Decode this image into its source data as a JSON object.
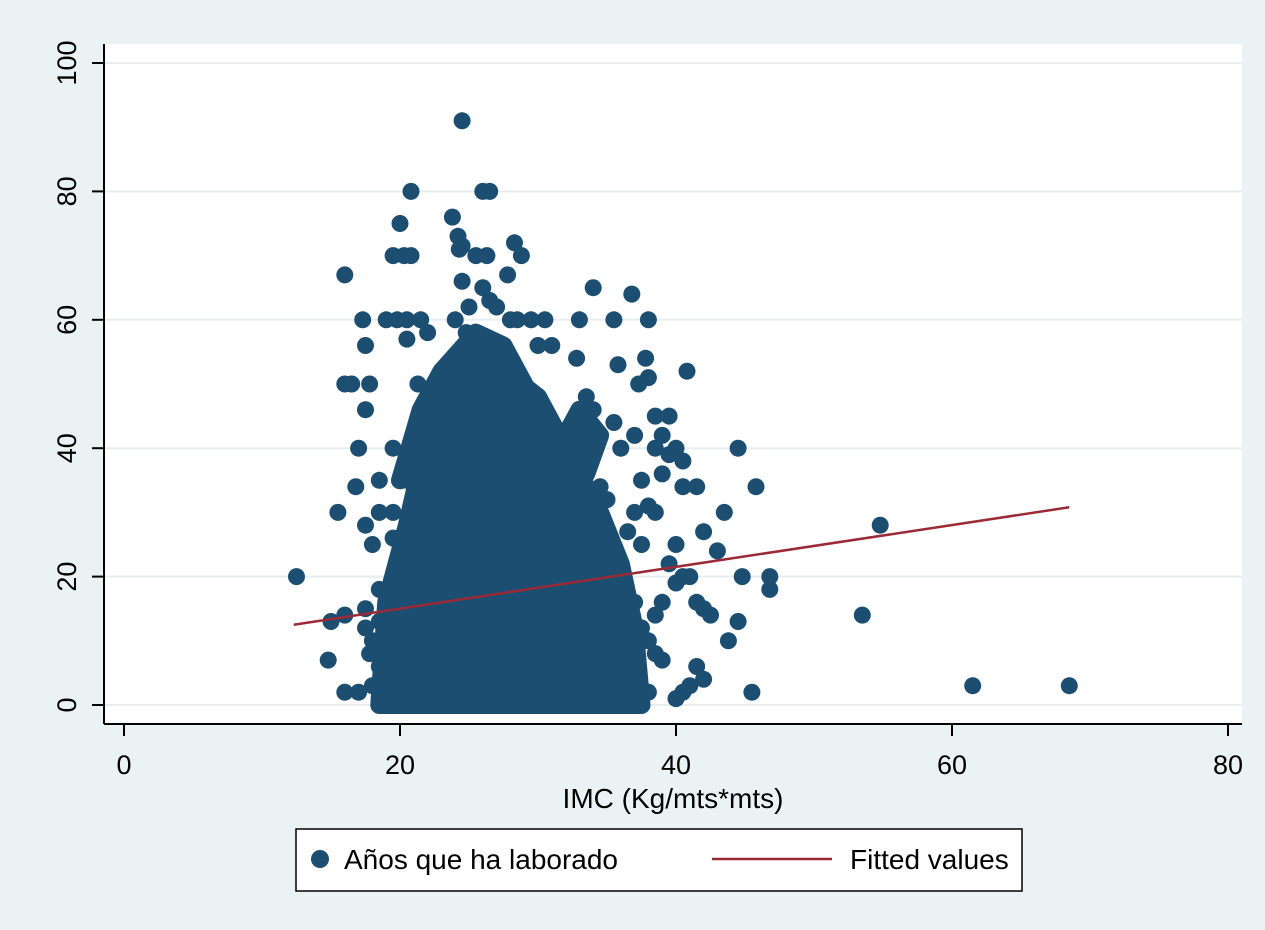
{
  "chart_data": {
    "type": "scatter",
    "title": "",
    "xlabel": "IMC (Kg/mts*mts)",
    "ylabel": "",
    "xlim": [
      0,
      80
    ],
    "ylim": [
      0,
      100
    ],
    "xticks": [
      "0",
      "20",
      "40",
      "60",
      "80"
    ],
    "yticks": [
      "0",
      "20",
      "40",
      "60",
      "80",
      "100"
    ],
    "grid": "horizontal",
    "legend_position": "bottom",
    "colors": {
      "points": "#1c4e72",
      "fit": "#9b2a36",
      "plot_bg": "#ffffff",
      "outer_bg": "#eaf2f3",
      "grid": "#e8eef0"
    },
    "series": [
      {
        "name": "Años que ha laborado",
        "kind": "scatter",
        "points": [
          [
            24.5,
            91
          ],
          [
            26,
            80
          ],
          [
            26.5,
            80
          ],
          [
            20.8,
            80
          ],
          [
            23.8,
            76
          ],
          [
            20,
            75
          ],
          [
            24.2,
            73
          ],
          [
            28.3,
            72
          ],
          [
            24.5,
            71.5
          ],
          [
            24.3,
            71
          ],
          [
            19.5,
            70
          ],
          [
            20.3,
            70
          ],
          [
            20.8,
            70
          ],
          [
            25.5,
            70
          ],
          [
            26.3,
            70
          ],
          [
            28.8,
            70
          ],
          [
            16,
            67
          ],
          [
            27.8,
            67
          ],
          [
            24.5,
            66
          ],
          [
            34,
            65
          ],
          [
            26,
            65
          ],
          [
            26.5,
            63
          ],
          [
            36.8,
            64
          ],
          [
            25,
            62
          ],
          [
            27,
            62
          ],
          [
            17.3,
            60
          ],
          [
            19,
            60
          ],
          [
            19.8,
            60
          ],
          [
            20.5,
            60
          ],
          [
            21.5,
            60
          ],
          [
            24,
            60
          ],
          [
            28,
            60
          ],
          [
            28.5,
            60
          ],
          [
            29.5,
            60
          ],
          [
            30.5,
            60
          ],
          [
            33,
            60
          ],
          [
            35.5,
            60
          ],
          [
            38,
            60
          ],
          [
            22,
            58
          ],
          [
            24.8,
            58
          ],
          [
            20.5,
            57
          ],
          [
            17.5,
            56
          ],
          [
            26.5,
            56
          ],
          [
            30,
            56
          ],
          [
            31,
            56
          ],
          [
            35.8,
            53
          ],
          [
            37.8,
            54
          ],
          [
            32.8,
            54
          ],
          [
            40.8,
            52
          ],
          [
            16,
            50
          ],
          [
            16.5,
            50
          ],
          [
            17.8,
            50
          ],
          [
            21.3,
            50
          ],
          [
            23,
            50
          ],
          [
            27,
            50
          ],
          [
            37.3,
            50
          ],
          [
            38,
            51
          ],
          [
            22.5,
            48
          ],
          [
            29.5,
            48
          ],
          [
            33.5,
            48
          ],
          [
            17.5,
            46
          ],
          [
            34,
            46
          ],
          [
            38.5,
            45
          ],
          [
            39.5,
            45
          ],
          [
            22,
            44
          ],
          [
            35.5,
            44
          ],
          [
            25.5,
            43
          ],
          [
            30,
            43
          ],
          [
            21,
            42
          ],
          [
            28.5,
            42
          ],
          [
            39,
            42
          ],
          [
            37,
            42
          ],
          [
            17,
            40
          ],
          [
            19.5,
            40
          ],
          [
            21.5,
            40
          ],
          [
            31,
            40
          ],
          [
            36,
            40
          ],
          [
            38.5,
            40
          ],
          [
            40,
            40
          ],
          [
            44.5,
            40
          ],
          [
            24,
            38
          ],
          [
            30.5,
            38
          ],
          [
            40.5,
            38
          ],
          [
            39.5,
            39
          ],
          [
            26.5,
            36
          ],
          [
            33,
            36
          ],
          [
            18.5,
            35
          ],
          [
            20.5,
            35
          ],
          [
            29,
            35
          ],
          [
            37.5,
            35
          ],
          [
            39,
            36
          ],
          [
            34.5,
            34
          ],
          [
            40.5,
            34
          ],
          [
            41.5,
            34
          ],
          [
            45.8,
            34
          ],
          [
            16.8,
            34
          ],
          [
            23,
            33
          ],
          [
            28.5,
            32
          ],
          [
            35,
            32
          ],
          [
            38,
            31
          ],
          [
            18.5,
            30
          ],
          [
            19.5,
            30
          ],
          [
            22,
            30
          ],
          [
            25.5,
            30
          ],
          [
            30.5,
            30
          ],
          [
            32.5,
            30
          ],
          [
            37,
            30
          ],
          [
            38.5,
            30
          ],
          [
            43.5,
            30
          ],
          [
            15.5,
            30
          ],
          [
            17.5,
            28
          ],
          [
            26.5,
            28
          ],
          [
            32.5,
            28
          ],
          [
            36.5,
            27
          ],
          [
            42,
            27
          ],
          [
            19.5,
            26
          ],
          [
            24.5,
            25
          ],
          [
            29,
            25
          ],
          [
            34,
            25
          ],
          [
            37.5,
            25
          ],
          [
            40,
            25
          ],
          [
            18,
            25
          ],
          [
            21,
            23
          ],
          [
            23.5,
            23
          ],
          [
            27.5,
            23
          ],
          [
            31.5,
            23
          ],
          [
            35.5,
            22
          ],
          [
            39.5,
            22
          ],
          [
            43,
            24
          ],
          [
            20,
            21
          ],
          [
            25,
            20
          ],
          [
            28,
            20
          ],
          [
            33.5,
            20
          ],
          [
            40.5,
            20
          ],
          [
            41,
            20
          ],
          [
            44.8,
            20
          ],
          [
            46.8,
            20
          ],
          [
            12.5,
            20
          ],
          [
            18.5,
            18
          ],
          [
            22,
            18
          ],
          [
            26,
            18
          ],
          [
            30,
            18
          ],
          [
            36,
            18
          ],
          [
            40,
            19
          ],
          [
            46.8,
            18
          ],
          [
            19.5,
            16
          ],
          [
            23.5,
            16
          ],
          [
            27.5,
            16
          ],
          [
            33,
            16
          ],
          [
            37,
            16
          ],
          [
            39,
            16
          ],
          [
            41.5,
            16
          ],
          [
            17.5,
            15
          ],
          [
            21.5,
            15
          ],
          [
            25.5,
            15
          ],
          [
            29.5,
            15
          ],
          [
            35,
            15
          ],
          [
            42,
            15
          ],
          [
            16,
            14
          ],
          [
            20.5,
            14
          ],
          [
            24,
            14
          ],
          [
            28.5,
            14
          ],
          [
            31.5,
            14
          ],
          [
            38.5,
            14
          ],
          [
            42.5,
            14
          ],
          [
            53.5,
            14
          ],
          [
            15,
            13
          ],
          [
            18.5,
            13
          ],
          [
            22.5,
            13
          ],
          [
            26.5,
            13
          ],
          [
            30.5,
            13
          ],
          [
            34.5,
            13
          ],
          [
            44.5,
            13
          ],
          [
            17.5,
            12
          ],
          [
            21,
            12
          ],
          [
            25,
            12
          ],
          [
            29,
            12
          ],
          [
            33,
            12
          ],
          [
            37.5,
            12
          ],
          [
            19.5,
            11
          ],
          [
            23.5,
            11
          ],
          [
            27.5,
            11
          ],
          [
            31.5,
            11
          ],
          [
            35.5,
            11
          ],
          [
            18,
            10
          ],
          [
            22,
            10
          ],
          [
            26,
            10
          ],
          [
            30,
            10
          ],
          [
            34,
            10
          ],
          [
            38,
            10
          ],
          [
            43.8,
            10
          ],
          [
            20.5,
            9
          ],
          [
            24.5,
            9
          ],
          [
            28.5,
            9
          ],
          [
            32.5,
            9
          ],
          [
            36.5,
            9
          ],
          [
            17.8,
            8
          ],
          [
            21.5,
            8
          ],
          [
            25.5,
            8
          ],
          [
            29.5,
            8
          ],
          [
            33.5,
            8
          ],
          [
            38.5,
            8
          ],
          [
            14.8,
            7
          ],
          [
            19,
            7
          ],
          [
            23,
            7
          ],
          [
            27,
            7
          ],
          [
            31,
            7
          ],
          [
            35,
            7
          ],
          [
            39,
            7
          ],
          [
            18.5,
            6
          ],
          [
            22.5,
            6
          ],
          [
            26.5,
            6
          ],
          [
            30.5,
            6
          ],
          [
            34.5,
            6
          ],
          [
            41.5,
            6
          ],
          [
            20,
            5
          ],
          [
            24,
            5
          ],
          [
            28,
            5
          ],
          [
            32,
            5
          ],
          [
            36,
            5
          ],
          [
            19,
            4
          ],
          [
            23,
            4
          ],
          [
            27,
            4
          ],
          [
            31,
            4
          ],
          [
            35,
            4
          ],
          [
            42,
            4
          ],
          [
            18,
            3
          ],
          [
            21.5,
            3
          ],
          [
            25.5,
            3
          ],
          [
            29.5,
            3
          ],
          [
            33.5,
            3
          ],
          [
            37,
            3
          ],
          [
            41,
            3
          ],
          [
            61.5,
            3
          ],
          [
            68.5,
            3
          ],
          [
            16,
            2
          ],
          [
            17,
            2
          ],
          [
            19.5,
            2
          ],
          [
            23.5,
            2
          ],
          [
            27.5,
            2
          ],
          [
            31.5,
            2
          ],
          [
            35.5,
            2
          ],
          [
            38,
            2
          ],
          [
            40.5,
            2
          ],
          [
            45.5,
            2
          ],
          [
            18.5,
            1
          ],
          [
            22,
            1
          ],
          [
            26,
            1
          ],
          [
            30,
            1
          ],
          [
            34,
            1
          ],
          [
            40,
            1
          ],
          [
            20,
            0
          ],
          [
            21,
            0
          ],
          [
            22.5,
            0
          ],
          [
            24,
            0
          ],
          [
            25.5,
            0
          ],
          [
            27,
            0
          ],
          [
            28.5,
            0
          ],
          [
            30,
            0
          ],
          [
            31.5,
            0
          ],
          [
            33,
            0
          ],
          [
            34.5,
            0
          ],
          [
            36.5,
            0
          ],
          [
            37.5,
            0
          ],
          [
            54.8,
            28
          ]
        ]
      },
      {
        "name": "Fitted values",
        "kind": "line",
        "points": [
          [
            12.3,
            12.5
          ],
          [
            68.5,
            30.8
          ]
        ]
      }
    ]
  }
}
